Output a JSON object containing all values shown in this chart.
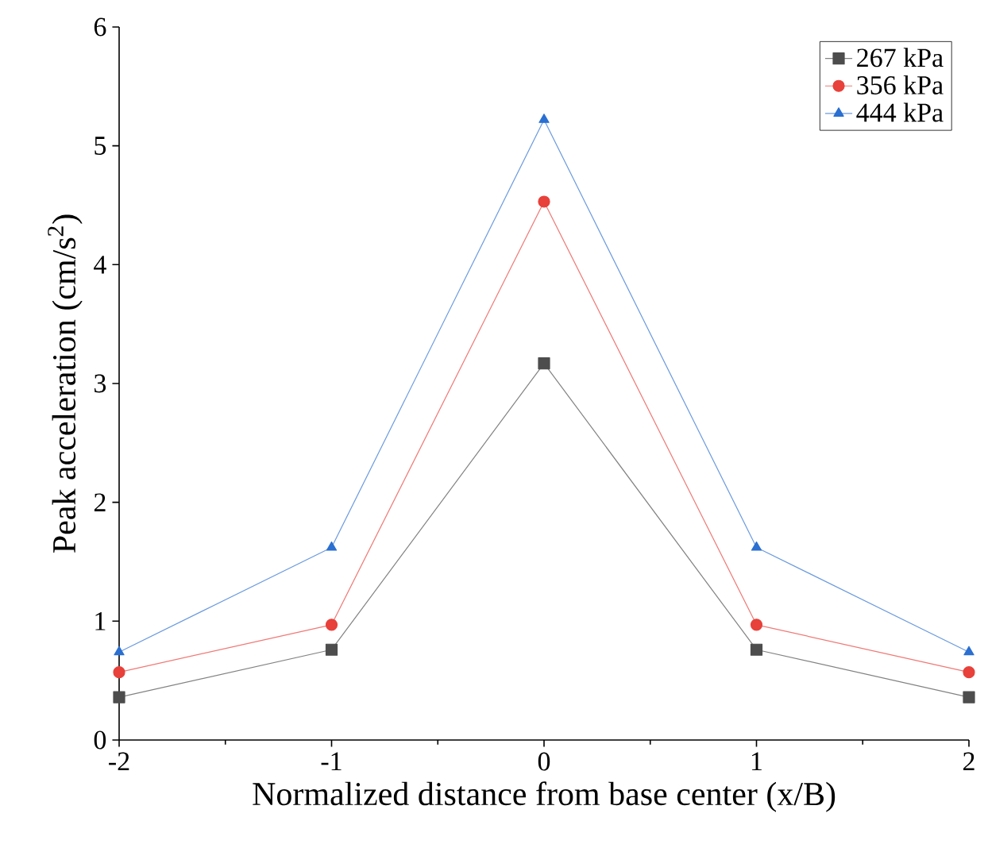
{
  "chart_data": {
    "type": "line",
    "xlabel": "Normalized distance from base center (x/B)",
    "ylabel": "Peak acceleration (cm/s$^{2}$)",
    "x": [
      -2,
      -1,
      0,
      1,
      2
    ],
    "series": [
      {
        "name": "267 kPa",
        "color": "#4d4d4d",
        "marker": "square",
        "values": [
          0.36,
          0.76,
          3.17,
          0.76,
          0.36
        ]
      },
      {
        "name": "356 kPa",
        "color": "#e8403a",
        "marker": "circle",
        "values": [
          0.57,
          0.97,
          4.53,
          0.97,
          0.57
        ]
      },
      {
        "name": "444 kPa",
        "color": "#2a6fd1",
        "marker": "triangle",
        "values": [
          0.74,
          1.62,
          5.22,
          1.62,
          0.74
        ]
      }
    ],
    "xlim": [
      -2,
      2
    ],
    "ylim": [
      0,
      6
    ],
    "xticks": [
      -2,
      -1,
      0,
      1,
      2
    ],
    "yticks": [
      0,
      1,
      2,
      3,
      4,
      5,
      6
    ],
    "grid": false,
    "legend": "top right",
    "line_style": "solid"
  }
}
